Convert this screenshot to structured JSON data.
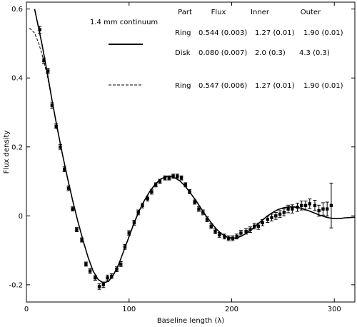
{
  "chart_data": {
    "type": "scatter",
    "xlabel": "Baseline length (λ)",
    "ylabel": "Flux density",
    "xlim": [
      0,
      320
    ],
    "ylim": [
      -0.25,
      0.62
    ],
    "x_ticks": [
      0,
      100,
      200,
      300
    ],
    "y_ticks": [
      -0.2,
      0,
      0.2,
      0.4,
      0.6
    ],
    "x_tick_labels": [
      "0",
      "100",
      "200",
      "300"
    ],
    "y_tick_labels": [
      "-0.2",
      "0",
      "0.2",
      "0.4",
      "0.6"
    ],
    "grid": false,
    "legend": {
      "title": "1.4 mm continuum",
      "entries": [
        {
          "style": "solid",
          "row": 0
        },
        {
          "style": "dashed",
          "row": 2
        }
      ]
    },
    "table": {
      "headers": [
        "Part",
        "Flux",
        "Inner",
        "Outer"
      ],
      "rows": [
        [
          "Ring",
          "0.544 (0.003)",
          "1.27 (0.01)",
          "1.90 (0.01)"
        ],
        [
          "Disk",
          "0.080 (0.007)",
          "2.0 (0.3)",
          "4.3 (0.3)"
        ],
        [
          "Ring",
          "0.547 (0.006)",
          "1.27 (0.01)",
          "1.90 (0.01)"
        ]
      ]
    },
    "series": [
      {
        "kind": "points",
        "x": [
          13,
          17,
          21,
          25,
          29,
          33,
          37,
          41,
          45,
          49,
          54,
          58,
          62,
          67,
          71,
          75,
          79,
          83,
          88,
          92,
          96,
          100,
          105,
          109,
          113,
          118,
          122,
          126,
          130,
          135,
          139,
          143,
          147,
          151,
          155,
          159,
          164,
          168,
          172,
          176,
          180,
          184,
          188,
          193,
          197,
          201,
          205,
          209,
          214,
          218,
          222,
          226,
          230,
          235,
          239,
          243,
          247,
          251,
          255,
          259,
          264,
          268,
          272,
          276,
          281,
          285,
          289,
          293,
          297
        ],
        "y": [
          0.54,
          0.45,
          0.42,
          0.32,
          0.26,
          0.2,
          0.135,
          0.08,
          0.02,
          -0.04,
          -0.07,
          -0.14,
          -0.16,
          -0.18,
          -0.205,
          -0.2,
          -0.18,
          -0.175,
          -0.155,
          -0.14,
          -0.09,
          -0.05,
          -0.02,
          0.01,
          0.03,
          0.05,
          0.07,
          0.09,
          0.1,
          0.11,
          0.11,
          0.115,
          0.115,
          0.11,
          0.09,
          0.07,
          0.04,
          0.02,
          0.01,
          -0.01,
          -0.03,
          -0.045,
          -0.055,
          -0.06,
          -0.065,
          -0.065,
          -0.06,
          -0.05,
          -0.045,
          -0.04,
          -0.03,
          -0.03,
          -0.02,
          -0.01,
          -0.005,
          0.0,
          0.005,
          0.01,
          0.02,
          0.02,
          0.025,
          0.03,
          0.03,
          0.035,
          0.03,
          0.015,
          0.02,
          0.02,
          0.03
        ],
        "err": [
          0.01,
          0.008,
          0.008,
          0.008,
          0.007,
          0.007,
          0.007,
          0.007,
          0.006,
          0.006,
          0.006,
          0.006,
          0.007,
          0.007,
          0.008,
          0.008,
          0.008,
          0.007,
          0.007,
          0.007,
          0.007,
          0.007,
          0.007,
          0.007,
          0.007,
          0.007,
          0.007,
          0.006,
          0.006,
          0.006,
          0.006,
          0.006,
          0.006,
          0.006,
          0.006,
          0.006,
          0.006,
          0.007,
          0.007,
          0.007,
          0.007,
          0.007,
          0.007,
          0.007,
          0.007,
          0.007,
          0.007,
          0.008,
          0.008,
          0.008,
          0.008,
          0.009,
          0.009,
          0.009,
          0.01,
          0.01,
          0.01,
          0.01,
          0.011,
          0.012,
          0.012,
          0.013,
          0.013,
          0.014,
          0.015,
          0.016,
          0.018,
          0.02,
          0.065
        ]
      },
      {
        "kind": "line",
        "style": "solid",
        "x": [
          8,
          15,
          20,
          25,
          30,
          35,
          40,
          45,
          50,
          55,
          60,
          65,
          70,
          75,
          80,
          85,
          90,
          95,
          100,
          105,
          110,
          115,
          120,
          125,
          130,
          135,
          140,
          145,
          150,
          155,
          160,
          165,
          170,
          175,
          180,
          185,
          190,
          195,
          200,
          205,
          210,
          215,
          220,
          225,
          230,
          235,
          240,
          245,
          250,
          255,
          260,
          265,
          270,
          275,
          280,
          285,
          290,
          295,
          300,
          305,
          310,
          320
        ],
        "y": [
          0.6,
          0.5,
          0.42,
          0.335,
          0.255,
          0.18,
          0.11,
          0.045,
          -0.015,
          -0.07,
          -0.12,
          -0.16,
          -0.185,
          -0.195,
          -0.19,
          -0.17,
          -0.14,
          -0.1,
          -0.06,
          -0.02,
          0.015,
          0.045,
          0.07,
          0.09,
          0.105,
          0.113,
          0.115,
          0.11,
          0.1,
          0.085,
          0.065,
          0.045,
          0.022,
          0.0,
          -0.02,
          -0.038,
          -0.052,
          -0.061,
          -0.065,
          -0.064,
          -0.058,
          -0.049,
          -0.038,
          -0.025,
          -0.012,
          0.0,
          0.01,
          0.018,
          0.023,
          0.026,
          0.026,
          0.024,
          0.02,
          0.015,
          0.009,
          0.003,
          -0.002,
          -0.006,
          -0.008,
          -0.008,
          -0.006,
          -0.004
        ]
      },
      {
        "kind": "line",
        "style": "dashed",
        "x": [
          3,
          8,
          12,
          16,
          20,
          25
        ],
        "y": [
          0.545,
          0.53,
          0.5,
          0.46,
          0.41,
          0.335
        ]
      }
    ]
  }
}
